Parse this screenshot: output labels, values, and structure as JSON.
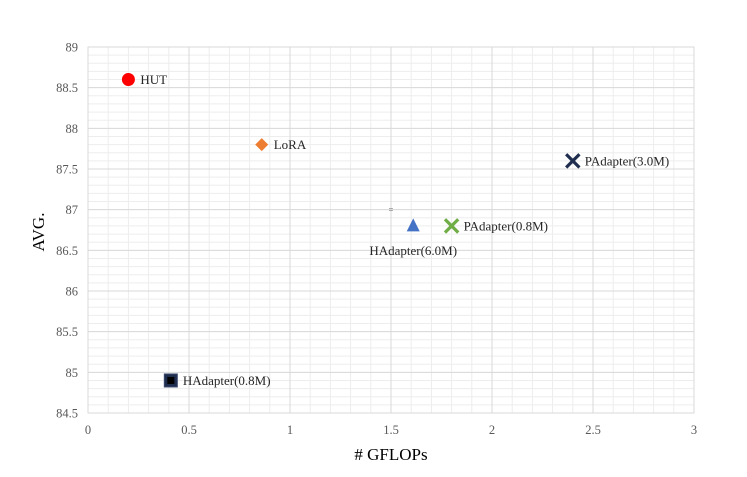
{
  "chart_data": {
    "type": "scatter",
    "title": "",
    "xlabel": "# GFLOPs",
    "ylabel": "AVG.",
    "xlim": [
      0,
      3
    ],
    "ylim": [
      84.5,
      89
    ],
    "xticks": [
      0,
      0.5,
      1,
      1.5,
      2,
      2.5,
      3
    ],
    "xtick_labels": [
      "0",
      "0.5",
      "1",
      "1.5",
      "2",
      "2.5",
      "3"
    ],
    "yticks": [
      84.5,
      85,
      85.5,
      86,
      86.5,
      87,
      87.5,
      88,
      88.5,
      89
    ],
    "ytick_labels": [
      "84.5",
      "85",
      "85.5",
      "86",
      "86.5",
      "87",
      "87.5",
      "88",
      "88.5",
      "89"
    ],
    "grid": true,
    "legend": "none",
    "points": [
      {
        "label": "HUT",
        "x": 0.2,
        "y": 88.6,
        "marker": "circle",
        "color": "#FF0000",
        "label_side": "right"
      },
      {
        "label": "LoRA",
        "x": 0.86,
        "y": 87.8,
        "marker": "diamond",
        "color": "#ED7D31",
        "label_side": "right"
      },
      {
        "label": "PAdapter(3.0M)",
        "x": 2.4,
        "y": 87.6,
        "marker": "x",
        "color": "#1F2D4F",
        "label_side": "right"
      },
      {
        "label": "HAdapter(6.0M)",
        "x": 1.61,
        "y": 86.8,
        "marker": "triangle",
        "color": "#4472C4",
        "label_side": "below"
      },
      {
        "label": "PAdapter(0.8M)",
        "x": 1.8,
        "y": 86.8,
        "marker": "x",
        "color": "#70AD47",
        "label_side": "right"
      },
      {
        "label": "HAdapter(0.8M)",
        "x": 0.41,
        "y": 84.9,
        "marker": "square",
        "color": "#1F2D4F",
        "label_side": "right"
      }
    ]
  }
}
